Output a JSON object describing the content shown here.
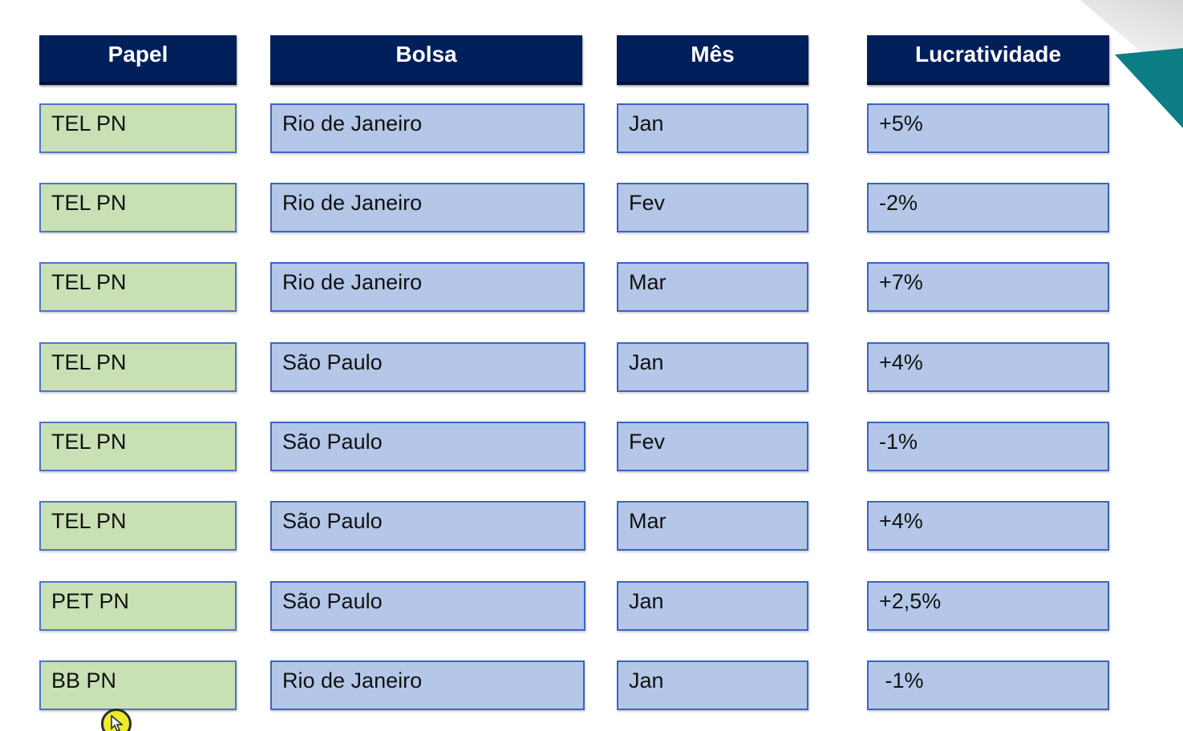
{
  "table": {
    "headers": [
      "Papel",
      "Bolsa",
      "Mês",
      "Lucratividade"
    ],
    "rows": [
      [
        "TEL PN",
        "Rio de Janeiro",
        "Jan",
        "+5%"
      ],
      [
        "TEL PN",
        "Rio de Janeiro",
        "Fev",
        "-2%"
      ],
      [
        "TEL PN",
        "Rio de Janeiro",
        "Mar",
        "+7%"
      ],
      [
        "TEL PN",
        "São Paulo",
        "Jan",
        "+4%"
      ],
      [
        "TEL PN",
        "São Paulo",
        "Fev",
        "-1%"
      ],
      [
        "TEL PN",
        "São Paulo",
        "Mar",
        "+4%"
      ],
      [
        "PET PN",
        "São Paulo",
        "Jan",
        "+2,5%"
      ],
      [
        "BB PN",
        "Rio de Janeiro",
        "Jan",
        " -1%"
      ]
    ]
  },
  "colors": {
    "header_bg": "#001f5b",
    "papel_cell_bg": "#c9e0b4",
    "value_cell_bg": "#b4c7e8",
    "accent_teal": "#0c7d84"
  },
  "icons": {
    "cursor": "mouse-cursor-highlight-icon"
  }
}
